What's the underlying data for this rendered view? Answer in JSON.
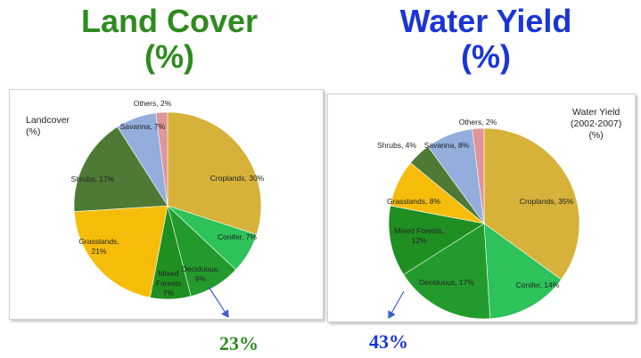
{
  "titles": {
    "land_cover": [
      "Land Cover",
      "(%)"
    ],
    "water_yield": [
      "Water Yield",
      "(%)"
    ]
  },
  "legends": {
    "land_cover": [
      "Landcover",
      "(%)"
    ],
    "water_yield": [
      "Water Yield",
      "(2002-2007)",
      "(%)"
    ]
  },
  "callouts": {
    "land_cover": "23%",
    "water_yield": "43%"
  },
  "colors": {
    "land_title": "#2e8b1f",
    "water_title": "#1a35d6",
    "arrow": "#3a5fd0"
  },
  "chart_data": [
    {
      "type": "pie",
      "title": "Land Cover (%)",
      "legend_title": "Landcover (%)",
      "slices": [
        {
          "label": "Croplands",
          "value": 30,
          "color": "#d6b23a",
          "text": "Croplands, 30%"
        },
        {
          "label": "Conifer",
          "value": 7,
          "color": "#2ec25a",
          "text": "Conifer, 7%"
        },
        {
          "label": "Deciduous",
          "value": 9,
          "color": "#239b2c",
          "text": "Deciduous, 9%"
        },
        {
          "label": "Mixed Forests",
          "value": 7,
          "color": "#1f8f22",
          "text": "Mixed Forests, 7%"
        },
        {
          "label": "Grasslands",
          "value": 21,
          "color": "#f5bd0a",
          "text": "Grasslands, 21%"
        },
        {
          "label": "Shrubs",
          "value": 17,
          "color": "#4f7a35",
          "text": "Shrubs, 17%"
        },
        {
          "label": "Savanna",
          "value": 7,
          "color": "#93aedc",
          "text": "Savanna, 7%"
        },
        {
          "label": "Others",
          "value": 2,
          "color": "#e0959a",
          "text": "Others, 2%"
        }
      ],
      "callout": "23%"
    },
    {
      "type": "pie",
      "title": "Water Yield (%)",
      "legend_title": "Water Yield (2002-2007) (%)",
      "slices": [
        {
          "label": "Croplands",
          "value": 35,
          "color": "#d6b23a",
          "text": "Croplands, 35%"
        },
        {
          "label": "Conifer",
          "value": 14,
          "color": "#2ec25a",
          "text": "Conifer, 14%"
        },
        {
          "label": "Deciduous",
          "value": 17,
          "color": "#239b2c",
          "text": "Deciduous, 17%"
        },
        {
          "label": "Mixed Forests",
          "value": 12,
          "color": "#1f8f22",
          "text": "Mixed Forests, 12%"
        },
        {
          "label": "Grasslands",
          "value": 8,
          "color": "#f5bd0a",
          "text": "Grasslands, 8%"
        },
        {
          "label": "Shrubs",
          "value": 4,
          "color": "#4f7a35",
          "text": "Shrubs, 4%"
        },
        {
          "label": "Savanna",
          "value": 8,
          "color": "#93aedc",
          "text": "Savanna, 8%"
        },
        {
          "label": "Others",
          "value": 2,
          "color": "#e0959a",
          "text": "Others, 2%"
        }
      ],
      "callout": "43%"
    }
  ]
}
